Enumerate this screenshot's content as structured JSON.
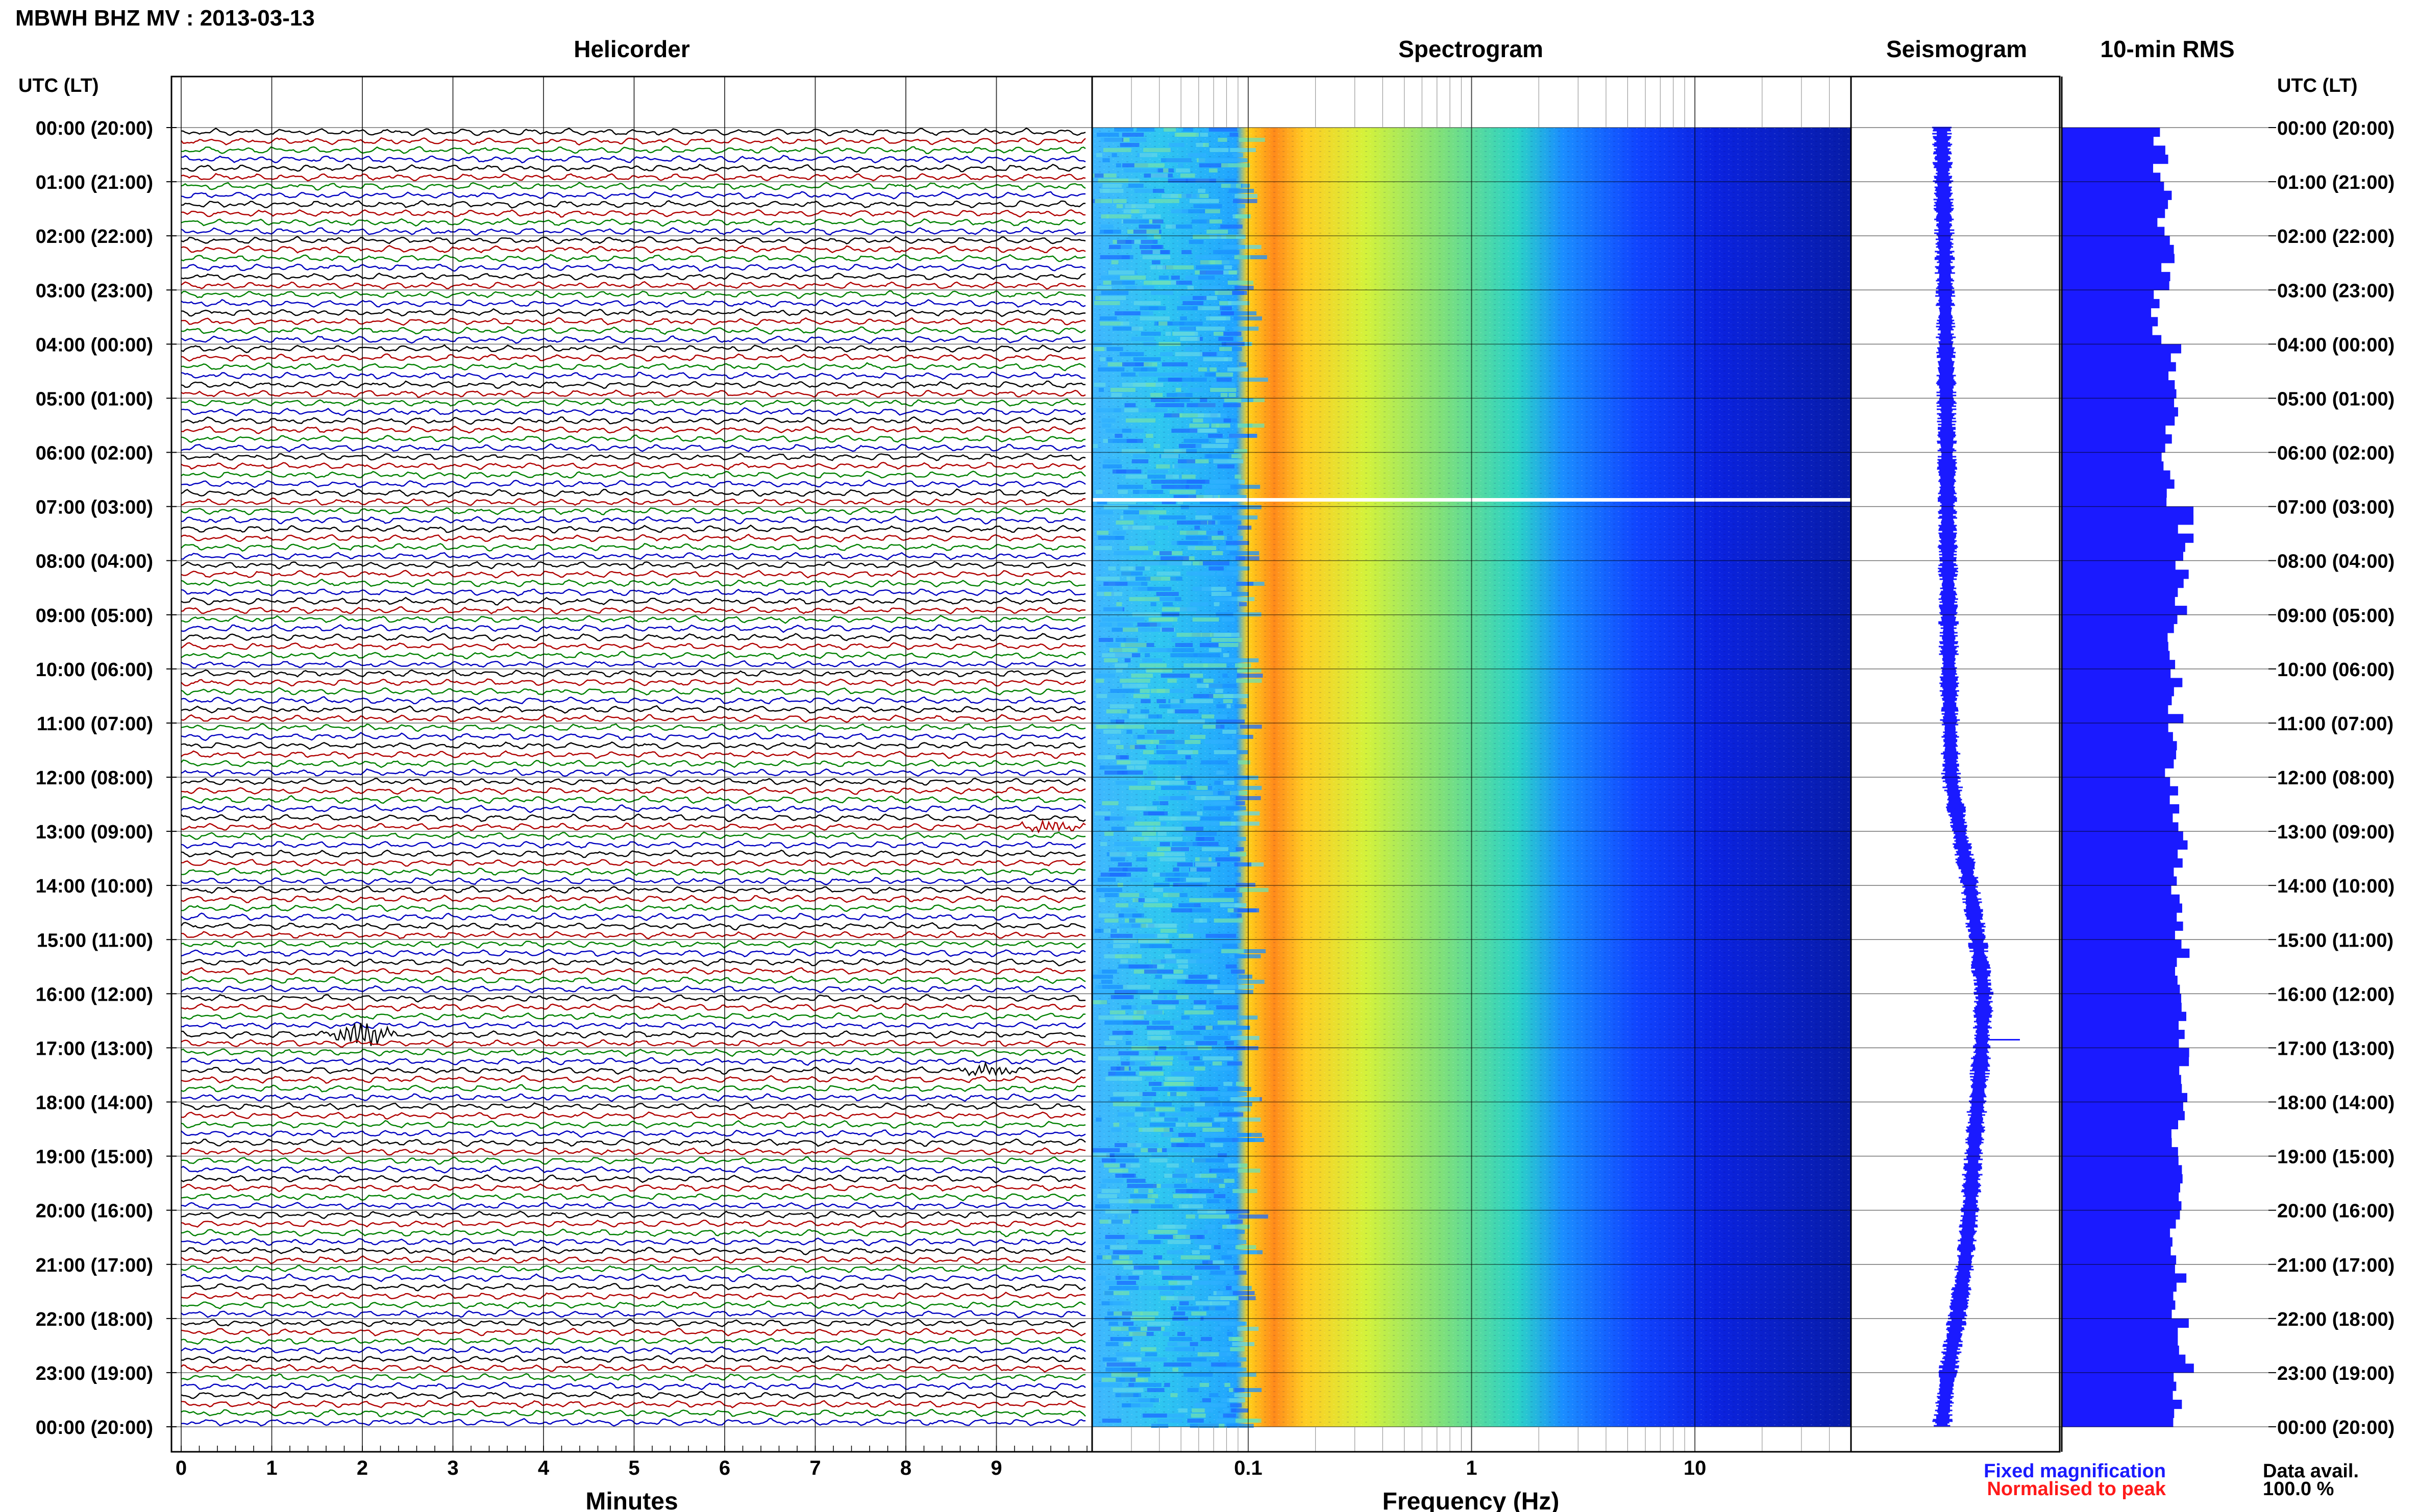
{
  "header": {
    "station_title": "MBWH BHZ MV : 2013-03-13",
    "utc_lt_label_left": "UTC (LT)",
    "utc_lt_label_right": "UTC (LT)"
  },
  "panels": {
    "helicorder_title": "Helicorder",
    "spectrogram_title": "Spectrogram",
    "seismogram_title": "Seismogram",
    "rms_title": "10-min RMS"
  },
  "time_labels": [
    "00:00 (20:00)",
    "01:00 (21:00)",
    "02:00 (22:00)",
    "03:00 (23:00)",
    "04:00 (00:00)",
    "05:00 (01:00)",
    "06:00 (02:00)",
    "07:00 (03:00)",
    "08:00 (04:00)",
    "09:00 (05:00)",
    "10:00 (06:00)",
    "11:00 (07:00)",
    "12:00 (08:00)",
    "13:00 (09:00)",
    "14:00 (10:00)",
    "15:00 (11:00)",
    "16:00 (12:00)",
    "17:00 (13:00)",
    "18:00 (14:00)",
    "19:00 (15:00)",
    "20:00 (16:00)",
    "21:00 (17:00)",
    "22:00 (18:00)",
    "23:00 (19:00)",
    "00:00 (20:00)"
  ],
  "footer": {
    "legend_fixed": "Fixed magnification",
    "legend_normalised": "Normalised to peak",
    "data_avail_label": "Data avail.",
    "data_avail_value": "100.0 %"
  },
  "colors": {
    "fixed_magnification": "#1a1aff",
    "normalised_to_peak": "#ff1a1a",
    "trace_colors": [
      "#000000",
      "#b00000",
      "#008000",
      "#0000c0"
    ],
    "rms_bar": "#1a1aff",
    "seismogram": "#1a1aff"
  },
  "chart_data": [
    {
      "type": "line",
      "name": "helicorder",
      "title": "Helicorder",
      "xlabel": "Minutes",
      "x_ticks": [
        0,
        1,
        2,
        3,
        4,
        5,
        6,
        7,
        8,
        9
      ],
      "xlim": [
        0,
        10
      ],
      "lines_per_hour": 6,
      "hours": 24,
      "notable_events": [
        {
          "minute": 2.0,
          "hour": 16.67,
          "description_amplitude": "large"
        },
        {
          "minute": 8.9,
          "hour": 17.25,
          "description_amplitude": "small"
        },
        {
          "minute": 9.6,
          "hour": 12.75,
          "description_amplitude": "small"
        }
      ]
    },
    {
      "type": "heatmap",
      "name": "spectrogram",
      "title": "Spectrogram",
      "xlabel": "Frequency (Hz)",
      "x_scale": "log",
      "xlim": [
        0.02,
        50
      ],
      "x_tick_labels": [
        "0.1",
        "1",
        "10"
      ],
      "x_ticks": [
        0.1,
        1,
        10
      ],
      "peak_band_hz": [
        0.13,
        0.25
      ],
      "data_gap_hour": 6.85
    },
    {
      "type": "line",
      "name": "seismogram",
      "title": "Seismogram",
      "hours": [
        0,
        2,
        4,
        6,
        8,
        10,
        12,
        13,
        14,
        15,
        16,
        17,
        18,
        19,
        20,
        21,
        22,
        23,
        24
      ],
      "offset": [
        0.0,
        0.05,
        0.08,
        0.1,
        0.12,
        0.14,
        0.18,
        0.35,
        0.55,
        0.7,
        0.82,
        0.78,
        0.7,
        0.62,
        0.55,
        0.45,
        0.3,
        0.12,
        0.0
      ]
    },
    {
      "type": "bar",
      "name": "rms",
      "title": "10-min RMS",
      "orientation": "horizontal",
      "bins_per_hour": 6,
      "hours": 24,
      "hourly_relative_rms": [
        0.48,
        0.5,
        0.52,
        0.45,
        0.55,
        0.53,
        0.52,
        0.6,
        0.58,
        0.52,
        0.55,
        0.52,
        0.54,
        0.58,
        0.56,
        0.58,
        0.6,
        0.58,
        0.56,
        0.58,
        0.55,
        0.57,
        0.6,
        0.55
      ]
    }
  ]
}
